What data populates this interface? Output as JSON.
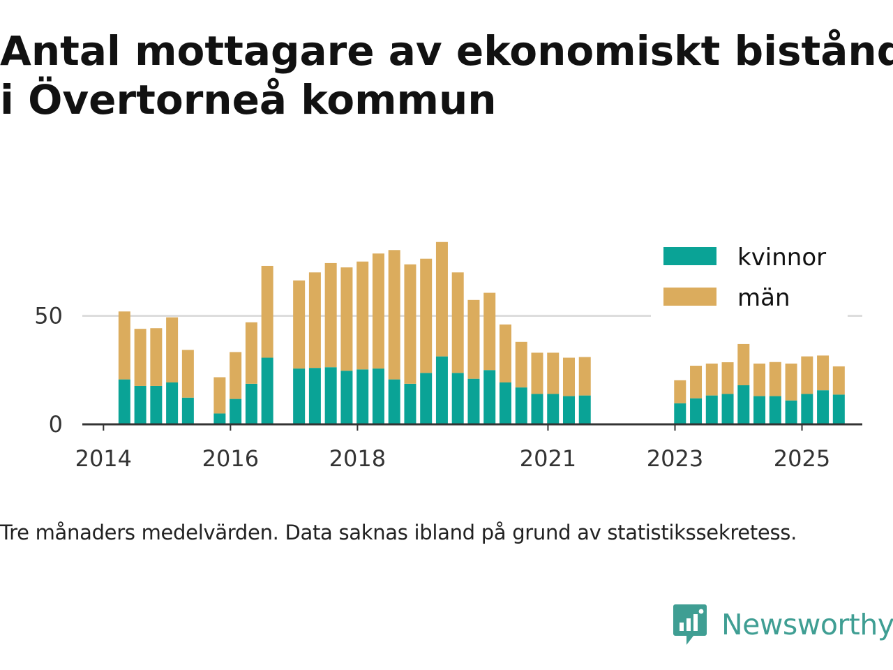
{
  "title_line1": "Antal mottagare av ekonomiskt bistånd",
  "title_line2": "i Övertorneå kommun",
  "caption": "Tre månaders medelvärden. Data saknas ibland på grund av statistikssekretess.",
  "brand": {
    "name": "Newsworthy",
    "icon": "newsworthy-logo-icon",
    "color": "#3f9e93"
  },
  "colors": {
    "kvinnor": "#0aa396",
    "man": "#dbac5d",
    "grid": "#dddddd",
    "axis": "#333333"
  },
  "chart_data": {
    "type": "bar",
    "stacked": true,
    "title": "Antal mottagare av ekonomiskt bistånd i Övertorneå kommun",
    "xlabel": "",
    "ylabel": "",
    "ylim": [
      0,
      85
    ],
    "yticks": [
      0,
      50
    ],
    "grid": true,
    "legend_position": "top-right",
    "x_range": [
      2013.667,
      2025.95
    ],
    "xticks": [
      {
        "value": 2014,
        "label": "2014"
      },
      {
        "value": 2016,
        "label": "2016"
      },
      {
        "value": 2018,
        "label": "2018"
      },
      {
        "value": 2021,
        "label": "2021"
      },
      {
        "value": 2023,
        "label": "2023"
      },
      {
        "value": 2025,
        "label": "2025"
      }
    ],
    "x": [
      2014.33,
      2014.58,
      2014.83,
      2015.08,
      2015.33,
      2015.83,
      2016.08,
      2016.33,
      2016.58,
      2017.08,
      2017.33,
      2017.58,
      2017.83,
      2018.08,
      2018.33,
      2018.58,
      2018.83,
      2019.08,
      2019.33,
      2019.58,
      2019.83,
      2020.08,
      2020.33,
      2020.58,
      2020.83,
      2021.08,
      2021.33,
      2021.58,
      2023.08,
      2023.33,
      2023.58,
      2023.83,
      2024.08,
      2024.33,
      2024.58,
      2024.83,
      2025.08,
      2025.33,
      2025.58
    ],
    "series": [
      {
        "name": "kvinnor",
        "values": [
          20.7,
          17.7,
          17.7,
          19.3,
          12.3,
          5.0,
          11.7,
          18.7,
          30.7,
          25.7,
          26.0,
          26.3,
          24.7,
          25.3,
          25.7,
          20.7,
          18.7,
          23.7,
          31.3,
          23.7,
          21.0,
          25.0,
          19.3,
          17.0,
          14.0,
          14.0,
          13.0,
          13.3,
          9.7,
          12.0,
          13.3,
          14.0,
          18.0,
          13.0,
          13.0,
          11.0,
          14.0,
          15.7,
          13.7
        ]
      },
      {
        "name": "män",
        "values": [
          31.3,
          26.3,
          26.6,
          30.0,
          22.0,
          16.7,
          21.6,
          28.3,
          42.3,
          40.6,
          44.0,
          48.0,
          47.6,
          49.7,
          53.0,
          59.6,
          55.0,
          52.6,
          52.7,
          46.3,
          36.3,
          35.6,
          26.7,
          21.0,
          19.0,
          19.0,
          17.7,
          17.7,
          10.6,
          15.0,
          14.7,
          14.6,
          19.0,
          15.0,
          15.7,
          17.0,
          17.3,
          16.0,
          13.0
        ]
      }
    ],
    "legend": [
      {
        "label": "kvinnor",
        "color": "#0aa396"
      },
      {
        "label": "män",
        "color": "#dbac5d"
      }
    ]
  }
}
